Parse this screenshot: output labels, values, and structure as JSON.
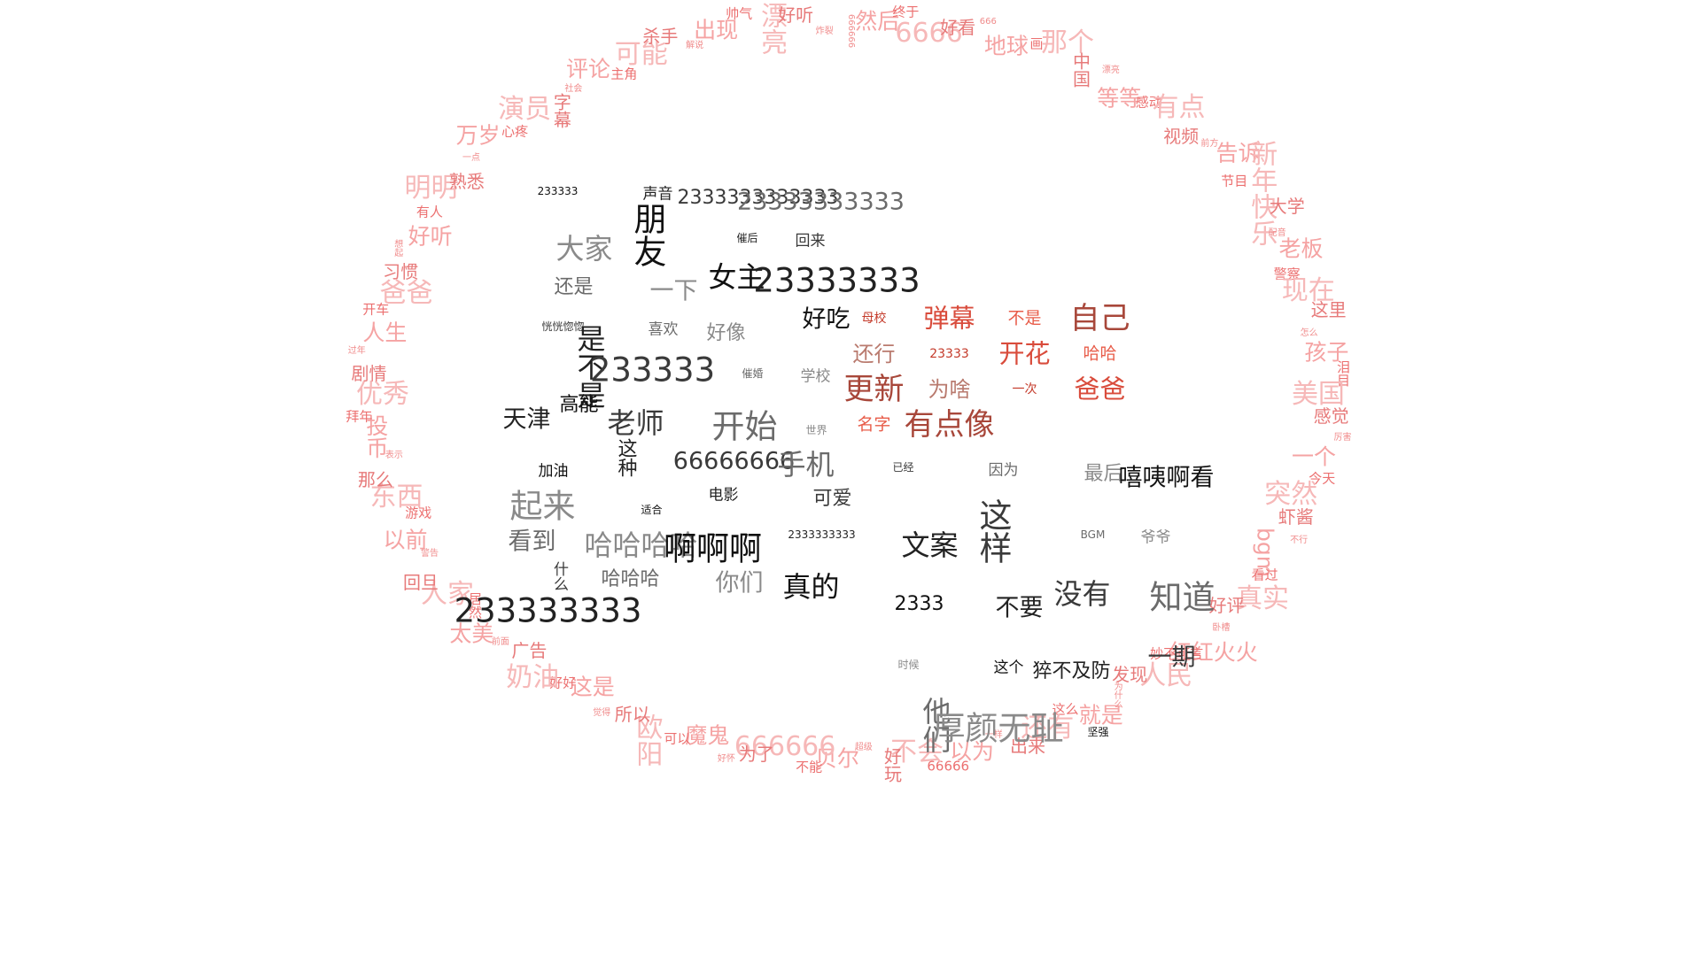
{
  "theme": {
    "ring": [
      "#f08c8c",
      "#f5a3a3",
      "#ec7070",
      "#f6b8b8",
      "#e77a7a"
    ],
    "dark": [
      "#111111",
      "#222222",
      "#3a3a3a",
      "#6b6b6b",
      "#8a8a8a"
    ],
    "red": [
      "#c43a2a",
      "#d94c3c",
      "#e85d4a",
      "#a8473a",
      "#b97a6e"
    ]
  },
  "ring_words": [
    "666666",
    "然后",
    "终于",
    "6666",
    "好看",
    "666",
    "地球",
    "画",
    "那个",
    "中国",
    "漂亮",
    "等等",
    "感动",
    "有点",
    "视频",
    "前方",
    "告诉",
    "节目",
    "新年快乐",
    "大学",
    "配音",
    "老板",
    "警察",
    "现在",
    "这里",
    "怎么",
    "孩子",
    "泪目",
    "美国",
    "感觉",
    "厉害",
    "一个",
    "今天",
    "突然",
    "虾酱",
    "不行",
    "bgm",
    "看过",
    "真实",
    "好评",
    "卧槽",
    "红红火火",
    "妙不可言",
    "人民",
    "发现",
    "为什么",
    "就是",
    "这么",
    "还有",
    "出来",
    "一样",
    "以为",
    "66666",
    "不会",
    "好玩",
    "超级",
    "贝尔",
    "不能",
    "666666",
    "为了",
    "好怀",
    "魔鬼",
    "可以",
    "欧阳",
    "所以",
    "觉得",
    "这是",
    "好好",
    "奶油",
    "广告",
    "前面",
    "太美",
    "居然",
    "人家",
    "回旦",
    "警告",
    "以前",
    "游戏",
    "东西",
    "那么",
    "表示",
    "投币",
    "拜年",
    "优秀",
    "剧情",
    "过年",
    "人生",
    "开车",
    "爸爸",
    "习惯",
    "想起",
    "好听",
    "有人",
    "明明",
    "熟悉",
    "一点",
    "万岁",
    "心疼",
    "演员",
    "字幕",
    "社会",
    "评论",
    "主角",
    "可能",
    "杀手",
    "解说",
    "出现",
    "帅气",
    "漂亮",
    "好听",
    "炸裂"
  ],
  "dark_words": [
    "233333",
    "声音",
    "2333333333333",
    "23333333333",
    "大家",
    "朋友",
    "催后",
    "回来",
    "还是",
    "一下",
    "女主",
    "23333333",
    "恍恍惚惚",
    "喜欢",
    "好像",
    "好吃",
    "是不是",
    "233333",
    "催婚",
    "学校",
    "高能",
    "天津",
    "老师",
    "开始",
    "世界",
    "加油",
    "这种",
    "66666666",
    "手机",
    "起来",
    "适合",
    "电影",
    "可爱",
    "看到",
    "哈哈哈哈",
    "啊啊啊",
    "2333333333",
    "什么",
    "哈哈哈",
    "你们",
    "真的",
    "233333333",
    "已经",
    "因为",
    "最后",
    "嘻咦啊看",
    "文案",
    "这样",
    "BGM",
    "爷爷",
    "2333",
    "不要",
    "没有",
    "知道",
    "时候",
    "这个",
    "猝不及防",
    "一期",
    "他们",
    "厚颜无耻",
    "坚强"
  ],
  "red_words": [
    "母校",
    "弹幕",
    "不是",
    "自己",
    "还行",
    "23333",
    "开花",
    "哈哈",
    "更新",
    "为啥",
    "一次",
    "爸爸",
    "名字",
    "有点像"
  ]
}
